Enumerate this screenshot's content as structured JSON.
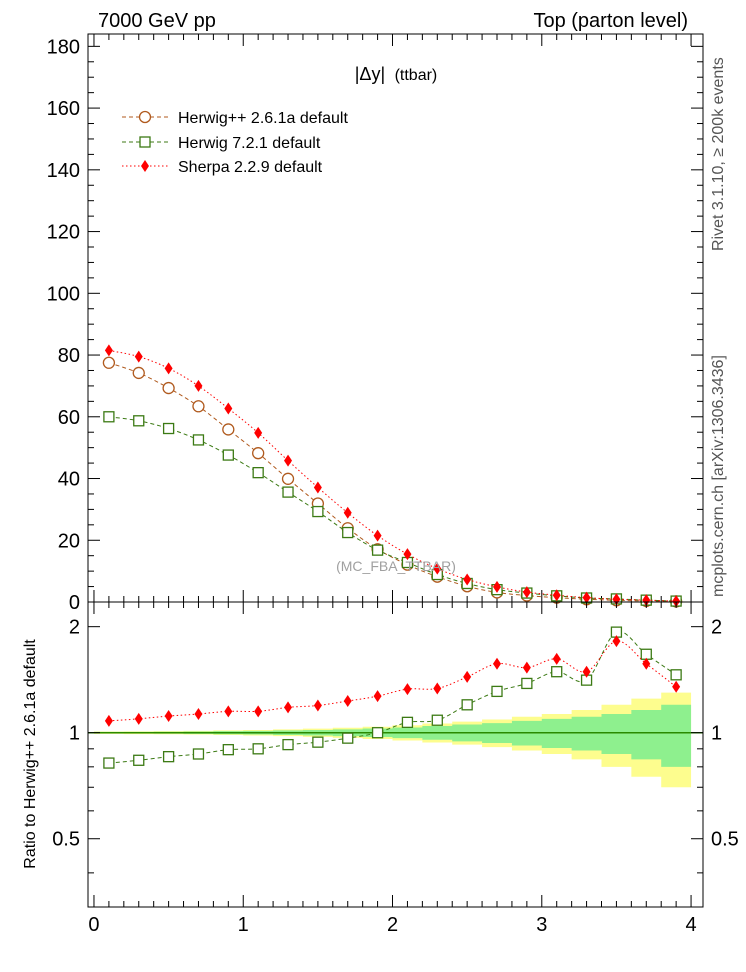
{
  "header": {
    "left": "7000 GeV pp",
    "right": "Top (parton level)"
  },
  "side_labels": {
    "rivet": "Rivet 3.1.10, ≥ 200k events",
    "mcplots": "mcplots.cern.ch [arXiv:1306.3436]"
  },
  "colors": {
    "herwigpp": "#b05a1e",
    "herwig7": "#3c7a14",
    "sherpa": "#ff0000",
    "band_inner": "#8ef08e",
    "band_outer": "#fdfd8e",
    "ratio_ref": "#2a8a00"
  },
  "chart_data": [
    {
      "type": "scatter",
      "panel": "main",
      "title_parts": [
        "|Δy|",
        "(ttbar)"
      ],
      "watermark": "(MC_FBA_TTBAR)",
      "xlabel": "",
      "ylabel": "",
      "xlim": [
        -0.04,
        4.08
      ],
      "ylim": [
        0,
        184
      ],
      "yticks": [
        0,
        20,
        40,
        60,
        80,
        100,
        120,
        140,
        160,
        180
      ],
      "legend_position": "top-left",
      "x": [
        0.1,
        0.3,
        0.5,
        0.7,
        0.9,
        1.1,
        1.3,
        1.5,
        1.7,
        1.9,
        2.1,
        2.3,
        2.5,
        2.7,
        2.9,
        3.1,
        3.3,
        3.5,
        3.7,
        3.9
      ],
      "series": [
        {
          "key": "herwigpp",
          "name": "Herwig++ 2.6.1a default",
          "marker": "open-circle",
          "line": "dashed",
          "values": [
            77.5,
            74.2,
            69.3,
            63.4,
            55.9,
            48.2,
            39.9,
            31.9,
            23.9,
            17.1,
            12.1,
            8.2,
            5.1,
            3.1,
            2.1,
            1.4,
            0.9,
            0.55,
            0.35,
            0.2
          ]
        },
        {
          "key": "herwig7",
          "name": "Herwig 7.2.1 default",
          "marker": "open-square",
          "line": "dashed",
          "values": [
            60.0,
            58.7,
            56.2,
            52.5,
            47.6,
            41.9,
            35.6,
            29.3,
            22.5,
            16.8,
            12.8,
            8.9,
            6.0,
            4.0,
            2.9,
            2.0,
            1.3,
            1.0,
            0.6,
            0.3
          ]
        },
        {
          "key": "sherpa",
          "name": "Sherpa 2.2.9 default",
          "marker": "filled-diamond",
          "line": "dotted",
          "values": [
            81.5,
            79.5,
            75.7,
            70.0,
            62.7,
            54.8,
            45.8,
            37.1,
            28.9,
            21.5,
            15.5,
            10.8,
            7.3,
            4.9,
            3.2,
            2.2,
            1.4,
            0.9,
            0.6,
            0.3
          ]
        }
      ]
    },
    {
      "type": "scatter",
      "panel": "ratio",
      "ylabel": "Ratio to Herwig++ 2.6.1a default",
      "xlim": [
        -0.04,
        4.08
      ],
      "ylim": [
        0.32,
        2.35
      ],
      "yticks": [
        0.5,
        1,
        2
      ],
      "ytick_labels": [
        "0.5",
        "1",
        "2"
      ],
      "xticks": [
        0,
        1,
        2,
        3,
        4
      ],
      "xtick_labels": [
        "0",
        "1",
        "2",
        "3",
        "4"
      ],
      "x": [
        0.1,
        0.3,
        0.5,
        0.7,
        0.9,
        1.1,
        1.3,
        1.5,
        1.7,
        1.9,
        2.1,
        2.3,
        2.5,
        2.7,
        2.9,
        3.1,
        3.3,
        3.5,
        3.7,
        3.9
      ],
      "band_inner_halfwidth": [
        0.005,
        0.005,
        0.006,
        0.008,
        0.01,
        0.012,
        0.015,
        0.018,
        0.022,
        0.028,
        0.035,
        0.045,
        0.055,
        0.065,
        0.08,
        0.095,
        0.11,
        0.13,
        0.16,
        0.2
      ],
      "band_outer_halfwidth": [
        0.008,
        0.009,
        0.01,
        0.012,
        0.015,
        0.018,
        0.022,
        0.027,
        0.033,
        0.04,
        0.05,
        0.062,
        0.075,
        0.09,
        0.11,
        0.13,
        0.16,
        0.2,
        0.25,
        0.3
      ],
      "series": [
        {
          "key": "herwig7",
          "name": "Herwig 7.2.1 default",
          "values": [
            0.82,
            0.835,
            0.855,
            0.87,
            0.895,
            0.9,
            0.925,
            0.94,
            0.965,
            1.0,
            1.07,
            1.085,
            1.2,
            1.31,
            1.38,
            1.49,
            1.41,
            1.93,
            1.67,
            1.46
          ]
        },
        {
          "key": "sherpa",
          "name": "Sherpa 2.2.9 default",
          "values": [
            1.08,
            1.095,
            1.115,
            1.13,
            1.15,
            1.15,
            1.18,
            1.195,
            1.23,
            1.27,
            1.33,
            1.335,
            1.44,
            1.57,
            1.53,
            1.62,
            1.49,
            1.82,
            1.57,
            1.35
          ]
        }
      ]
    }
  ]
}
